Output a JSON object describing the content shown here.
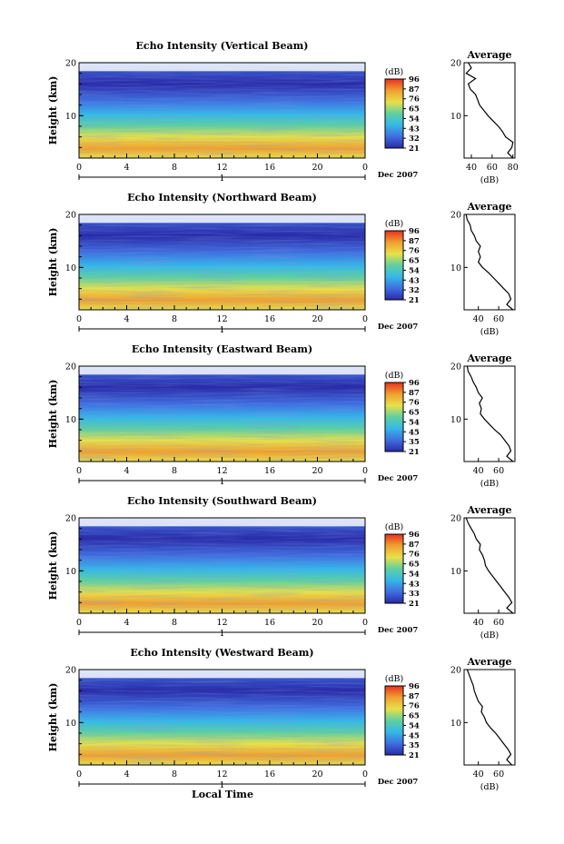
{
  "figure": {
    "shared_x_label": "Local Time",
    "colorbar_unit": "(dB)",
    "average_title": "Average",
    "average_x_label": "(dB)"
  },
  "chart_data": [
    {
      "type": "heatmap",
      "title": "Echo Intensity (Vertical Beam)",
      "ylabel": "Height (km)",
      "xlabel": "Local Time",
      "x_ticks": [
        "0",
        "4",
        "8",
        "12",
        "16",
        "20",
        "0"
      ],
      "date_label": "Dec 2007",
      "day_marker": "1",
      "y_ticks": [
        "20",
        "10"
      ],
      "xlim": [
        0,
        24
      ],
      "ylim": [
        2,
        20
      ],
      "colorbar": {
        "label": "(dB)",
        "ticks": [
          "96",
          "87",
          "76",
          "65",
          "54",
          "43",
          "32",
          "21"
        ],
        "range": [
          21,
          96
        ]
      },
      "colors": [
        "#2a2aa8",
        "#3f6fe0",
        "#35b8e8",
        "#5fd0a0",
        "#e8e04a",
        "#f0a030",
        "#e83020"
      ],
      "average_profile": {
        "title": "Average",
        "xlabel": "(dB)",
        "x_ticks": [
          "40",
          "60",
          "80"
        ],
        "xlim": [
          33,
          82
        ],
        "y_ticks": [
          "20",
          "10"
        ],
        "height_km": [
          20,
          19,
          18,
          17,
          16,
          15,
          14,
          13,
          12,
          11,
          10,
          9,
          8,
          7,
          6,
          5,
          4,
          3,
          2
        ],
        "mean_db": [
          37,
          40,
          35,
          44,
          37,
          39,
          44,
          46,
          48,
          52,
          56,
          61,
          66,
          70,
          73,
          80,
          79,
          75,
          80
        ]
      }
    },
    {
      "type": "heatmap",
      "title": "Echo Intensity (Northward Beam)",
      "ylabel": "Height (km)",
      "xlabel": "Local Time",
      "x_ticks": [
        "0",
        "4",
        "8",
        "12",
        "16",
        "20",
        "0"
      ],
      "date_label": "Dec 2007",
      "day_marker": "1",
      "y_ticks": [
        "20",
        "10"
      ],
      "xlim": [
        0,
        24
      ],
      "ylim": [
        2,
        20
      ],
      "colorbar": {
        "label": "(dB)",
        "ticks": [
          "96",
          "87",
          "76",
          "65",
          "54",
          "43",
          "32",
          "21"
        ],
        "range": [
          21,
          96
        ]
      },
      "colors": [
        "#2a2aa8",
        "#3f6fe0",
        "#35b8e8",
        "#5fd0a0",
        "#e8e04a",
        "#f0a030",
        "#e83020"
      ],
      "average_profile": {
        "title": "Average",
        "xlabel": "(dB)",
        "x_ticks": [
          "40",
          "60"
        ],
        "xlim": [
          26,
          76
        ],
        "y_ticks": [
          "20",
          "10"
        ],
        "height_km": [
          20,
          19,
          18,
          17,
          16,
          15,
          14,
          13,
          12,
          11,
          10,
          9,
          8,
          7,
          6,
          5,
          4,
          3,
          2
        ],
        "mean_db": [
          28,
          29,
          32,
          33,
          36,
          38,
          42,
          40,
          42,
          40,
          44,
          50,
          55,
          60,
          65,
          70,
          72,
          68,
          74
        ]
      }
    },
    {
      "type": "heatmap",
      "title": "Echo Intensity (Eastward Beam)",
      "ylabel": "Height (km)",
      "xlabel": "Local Time",
      "x_ticks": [
        "0",
        "4",
        "8",
        "12",
        "16",
        "20",
        "0"
      ],
      "date_label": "Dec 2007",
      "day_marker": "1",
      "y_ticks": [
        "20",
        "10"
      ],
      "xlim": [
        0,
        24
      ],
      "ylim": [
        2,
        20
      ],
      "colorbar": {
        "label": "(dB)",
        "ticks": [
          "96",
          "87",
          "76",
          "65",
          "54",
          "45",
          "35",
          "21"
        ],
        "range": [
          21,
          96
        ]
      },
      "colors": [
        "#2a2aa8",
        "#3f6fe0",
        "#35b8e8",
        "#5fd0a0",
        "#e8e04a",
        "#f0a030",
        "#e83020"
      ],
      "average_profile": {
        "title": "Average",
        "xlabel": "(dB)",
        "x_ticks": [
          "40",
          "60"
        ],
        "xlim": [
          26,
          76
        ],
        "y_ticks": [
          "20",
          "10"
        ],
        "height_km": [
          20,
          19,
          18,
          17,
          16,
          15,
          14,
          13,
          12,
          11,
          10,
          9,
          8,
          7,
          6,
          5,
          4,
          3,
          2
        ],
        "mean_db": [
          29,
          30,
          33,
          35,
          38,
          40,
          44,
          41,
          43,
          42,
          46,
          51,
          56,
          62,
          66,
          70,
          72,
          68,
          74
        ]
      }
    },
    {
      "type": "heatmap",
      "title": "Echo Intensity (Southward Beam)",
      "ylabel": "Height (km)",
      "xlabel": "Local Time",
      "x_ticks": [
        "0",
        "4",
        "8",
        "12",
        "16",
        "20",
        "0"
      ],
      "date_label": "Dec 2007",
      "day_marker": "1",
      "y_ticks": [
        "20",
        "10"
      ],
      "xlim": [
        0,
        24
      ],
      "ylim": [
        2,
        20
      ],
      "colorbar": {
        "label": "(dB)",
        "ticks": [
          "96",
          "87",
          "76",
          "65",
          "54",
          "43",
          "33",
          "21"
        ],
        "range": [
          21,
          96
        ]
      },
      "colors": [
        "#2a2aa8",
        "#3f6fe0",
        "#35b8e8",
        "#5fd0a0",
        "#e8e04a",
        "#f0a030",
        "#e83020"
      ],
      "average_profile": {
        "title": "Average",
        "xlabel": "(dB)",
        "x_ticks": [
          "40",
          "60"
        ],
        "xlim": [
          26,
          76
        ],
        "y_ticks": [
          "20",
          "10"
        ],
        "height_km": [
          20,
          19,
          18,
          17,
          16,
          15,
          14,
          13,
          12,
          11,
          10,
          9,
          8,
          7,
          6,
          5,
          4,
          3,
          2
        ],
        "mean_db": [
          28,
          30,
          33,
          36,
          38,
          42,
          41,
          44,
          46,
          47,
          50,
          54,
          58,
          62,
          66,
          70,
          73,
          68,
          74
        ]
      }
    },
    {
      "type": "heatmap",
      "title": "Echo Intensity (Westward Beam)",
      "ylabel": "Height (km)",
      "xlabel": "Local Time",
      "x_ticks": [
        "0",
        "4",
        "8",
        "12",
        "16",
        "20",
        "0"
      ],
      "date_label": "Dec 2007",
      "day_marker": "1",
      "y_ticks": [
        "20",
        "10"
      ],
      "xlim": [
        0,
        24
      ],
      "ylim": [
        2,
        20
      ],
      "colorbar": {
        "label": "(dB)",
        "ticks": [
          "96",
          "87",
          "76",
          "65",
          "54",
          "45",
          "35",
          "21"
        ],
        "range": [
          21,
          96
        ]
      },
      "colors": [
        "#2a2aa8",
        "#3f6fe0",
        "#35b8e8",
        "#5fd0a0",
        "#e8e04a",
        "#f0a030",
        "#e83020"
      ],
      "average_profile": {
        "title": "Average",
        "xlabel": "(dB)",
        "x_ticks": [
          "40",
          "60"
        ],
        "xlim": [
          26,
          76
        ],
        "y_ticks": [
          "20",
          "10"
        ],
        "height_km": [
          20,
          19,
          18,
          17,
          16,
          15,
          14,
          13,
          12,
          11,
          10,
          9,
          8,
          7,
          6,
          5,
          4,
          3,
          2
        ],
        "mean_db": [
          29,
          31,
          33,
          35,
          36,
          38,
          40,
          44,
          43,
          46,
          48,
          52,
          57,
          61,
          65,
          69,
          72,
          68,
          73
        ]
      }
    }
  ]
}
